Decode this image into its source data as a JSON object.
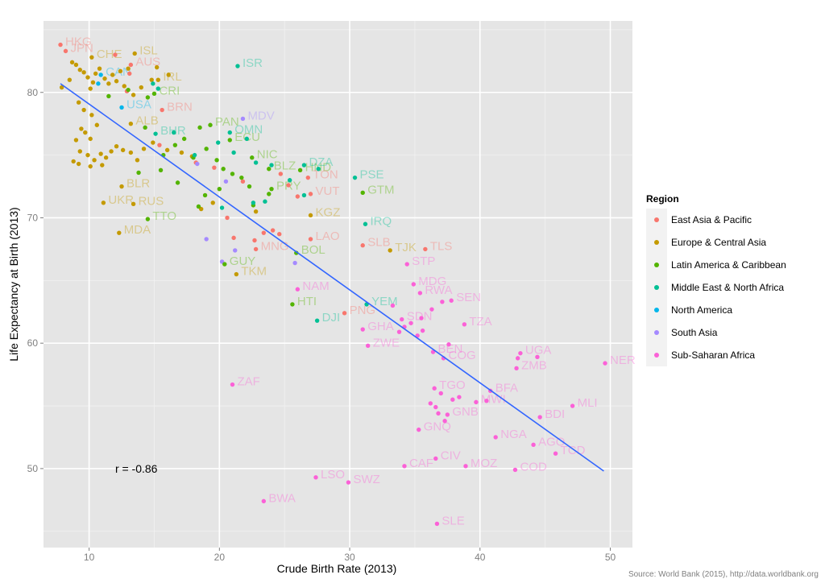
{
  "chart_data": {
    "type": "scatter",
    "xlabel": "Crude Birth Rate (2013)",
    "ylabel": "Life Expectancy at Birth (2013)",
    "xlim": [
      6.5,
      51.7
    ],
    "ylim": [
      43.7,
      85.7
    ],
    "x_ticks": [
      10,
      20,
      30,
      40,
      50
    ],
    "y_ticks": [
      50,
      60,
      70,
      80
    ],
    "grid": true,
    "legend_title": "Region",
    "legend_position": "right",
    "regions": [
      {
        "name": "East Asia & Pacific",
        "color": "#F8766D"
      },
      {
        "name": "Europe & Central Asia",
        "color": "#C49A00"
      },
      {
        "name": "Latin America & Caribbean",
        "color": "#53B400"
      },
      {
        "name": "Middle East & North Africa",
        "color": "#00C094"
      },
      {
        "name": "North America",
        "color": "#00B6EB"
      },
      {
        "name": "South Asia",
        "color": "#A58AFF"
      },
      {
        "name": "Sub-Saharan Africa",
        "color": "#FB61D7"
      }
    ],
    "annotation": "r =  -0.86",
    "trend_line": {
      "x": [
        7.8,
        49.5
      ],
      "y": [
        80.7,
        49.8
      ]
    },
    "labeled_points": [
      {
        "label": "HKG",
        "x": 7.8,
        "y": 83.8,
        "region": 0
      },
      {
        "label": "JPN",
        "x": 8.2,
        "y": 83.3,
        "region": 0
      },
      {
        "label": "CHE",
        "x": 10.2,
        "y": 82.8,
        "region": 1
      },
      {
        "label": "ISL",
        "x": 13.5,
        "y": 83.1,
        "region": 1
      },
      {
        "label": "AUS",
        "x": 13.2,
        "y": 82.2,
        "region": 0
      },
      {
        "label": "IRL",
        "x": 15.3,
        "y": 81.0,
        "region": 1
      },
      {
        "label": "CRI",
        "x": 15.0,
        "y": 79.9,
        "region": 2
      },
      {
        "label": "USA",
        "x": 12.5,
        "y": 78.8,
        "region": 4
      },
      {
        "label": "BRN",
        "x": 15.6,
        "y": 78.6,
        "region": 0
      },
      {
        "label": "MDV",
        "x": 21.8,
        "y": 77.9,
        "region": 5
      },
      {
        "label": "ALB",
        "x": 13.2,
        "y": 77.5,
        "region": 1
      },
      {
        "label": "PAN",
        "x": 19.3,
        "y": 77.4,
        "region": 2
      },
      {
        "label": "BHR",
        "x": 15.1,
        "y": 76.7,
        "region": 3
      },
      {
        "label": "OMN",
        "x": 20.8,
        "y": 76.8,
        "region": 3
      },
      {
        "label": "ECU",
        "x": 20.8,
        "y": 76.2,
        "region": 2
      },
      {
        "label": "NIC",
        "x": 22.5,
        "y": 74.8,
        "region": 2
      },
      {
        "label": "BLZ",
        "x": 23.8,
        "y": 73.9,
        "region": 2
      },
      {
        "label": "HND",
        "x": 26.2,
        "y": 73.8,
        "region": 2
      },
      {
        "label": "DZA",
        "x": 26.5,
        "y": 74.2,
        "region": 3
      },
      {
        "label": "PSE",
        "x": 30.4,
        "y": 73.2,
        "region": 3
      },
      {
        "label": "PRY",
        "x": 24.0,
        "y": 72.3,
        "region": 2
      },
      {
        "label": "TON",
        "x": 26.8,
        "y": 73.2,
        "region": 0
      },
      {
        "label": "VUT",
        "x": 27.0,
        "y": 71.9,
        "region": 0
      },
      {
        "label": "GTM",
        "x": 31.0,
        "y": 72.0,
        "region": 2
      },
      {
        "label": "UKR",
        "x": 11.1,
        "y": 71.2,
        "region": 1
      },
      {
        "label": "RUS",
        "x": 13.4,
        "y": 71.1,
        "region": 1
      },
      {
        "label": "BLR",
        "x": 12.5,
        "y": 72.5,
        "region": 1
      },
      {
        "label": "KGZ",
        "x": 27.0,
        "y": 70.2,
        "region": 1
      },
      {
        "label": "TTO",
        "x": 14.5,
        "y": 69.9,
        "region": 2
      },
      {
        "label": "IRQ",
        "x": 31.2,
        "y": 69.5,
        "region": 3
      },
      {
        "label": "MDA",
        "x": 12.3,
        "y": 68.8,
        "region": 1
      },
      {
        "label": "LAO",
        "x": 27.0,
        "y": 68.3,
        "region": 0
      },
      {
        "label": "SLB",
        "x": 31.0,
        "y": 67.8,
        "region": 0
      },
      {
        "label": "TJK",
        "x": 33.1,
        "y": 67.4,
        "region": 1
      },
      {
        "label": "TLS",
        "x": 35.8,
        "y": 67.5,
        "region": 0
      },
      {
        "label": "BOL",
        "x": 25.9,
        "y": 67.2,
        "region": 2
      },
      {
        "label": "MNG",
        "x": 22.8,
        "y": 67.5,
        "region": 0
      },
      {
        "label": "GUY",
        "x": 20.4,
        "y": 66.3,
        "region": 2
      },
      {
        "label": "TKM",
        "x": 21.3,
        "y": 65.5,
        "region": 1
      },
      {
        "label": "STP",
        "x": 34.4,
        "y": 66.3,
        "region": 6
      },
      {
        "label": "NAM",
        "x": 26.0,
        "y": 64.3,
        "region": 6
      },
      {
        "label": "MDG",
        "x": 34.9,
        "y": 64.7,
        "region": 6
      },
      {
        "label": "RWA",
        "x": 35.4,
        "y": 64.0,
        "region": 6
      },
      {
        "label": "SEN",
        "x": 37.8,
        "y": 63.4,
        "region": 6
      },
      {
        "label": "HTI",
        "x": 25.6,
        "y": 63.1,
        "region": 2
      },
      {
        "label": "YEM",
        "x": 31.3,
        "y": 63.1,
        "region": 3
      },
      {
        "label": "PNG",
        "x": 29.6,
        "y": 62.4,
        "region": 0
      },
      {
        "label": "DJI",
        "x": 27.5,
        "y": 61.8,
        "region": 3
      },
      {
        "label": "TZA",
        "x": 38.8,
        "y": 61.5,
        "region": 6
      },
      {
        "label": "GHA",
        "x": 31.0,
        "y": 61.1,
        "region": 6
      },
      {
        "label": "SDN",
        "x": 34.0,
        "y": 61.9,
        "region": 6
      },
      {
        "label": "ZWE",
        "x": 31.4,
        "y": 59.8,
        "region": 6
      },
      {
        "label": "BEN",
        "x": 36.4,
        "y": 59.3,
        "region": 6
      },
      {
        "label": "COG",
        "x": 37.2,
        "y": 58.8,
        "region": 6
      },
      {
        "label": "UGA",
        "x": 43.1,
        "y": 59.2,
        "region": 6
      },
      {
        "label": "ZMB",
        "x": 42.8,
        "y": 58.0,
        "region": 6
      },
      {
        "label": "NER",
        "x": 49.6,
        "y": 58.4,
        "region": 6
      },
      {
        "label": "ZAF",
        "x": 21.0,
        "y": 56.7,
        "region": 6
      },
      {
        "label": "TGO",
        "x": 36.5,
        "y": 56.4,
        "region": 6
      },
      {
        "label": "BFA",
        "x": 40.8,
        "y": 56.2,
        "region": 6
      },
      {
        "label": "MWI",
        "x": 39.7,
        "y": 55.3,
        "region": 6
      },
      {
        "label": "GNB",
        "x": 37.5,
        "y": 54.3,
        "region": 6
      },
      {
        "label": "MLI",
        "x": 47.1,
        "y": 55.0,
        "region": 6
      },
      {
        "label": "BDI",
        "x": 44.6,
        "y": 54.1,
        "region": 6
      },
      {
        "label": "GNQ",
        "x": 35.3,
        "y": 53.1,
        "region": 6
      },
      {
        "label": "NGA",
        "x": 41.2,
        "y": 52.5,
        "region": 6
      },
      {
        "label": "AGO",
        "x": 44.1,
        "y": 51.9,
        "region": 6
      },
      {
        "label": "TCD",
        "x": 45.8,
        "y": 51.2,
        "region": 6
      },
      {
        "label": "CIV",
        "x": 36.6,
        "y": 50.8,
        "region": 6
      },
      {
        "label": "CAF",
        "x": 34.2,
        "y": 50.2,
        "region": 6
      },
      {
        "label": "MOZ",
        "x": 38.9,
        "y": 50.2,
        "region": 6
      },
      {
        "label": "COD",
        "x": 42.7,
        "y": 49.9,
        "region": 6
      },
      {
        "label": "LSO",
        "x": 27.4,
        "y": 49.3,
        "region": 6
      },
      {
        "label": "SWZ",
        "x": 29.9,
        "y": 48.9,
        "region": 6
      },
      {
        "label": "BWA",
        "x": 23.4,
        "y": 47.4,
        "region": 6
      },
      {
        "label": "SLE",
        "x": 36.7,
        "y": 45.6,
        "region": 6
      },
      {
        "label": "ISR",
        "x": 21.4,
        "y": 82.1,
        "region": 3
      },
      {
        "label": "CAN",
        "x": 10.9,
        "y": 81.4,
        "region": 4
      }
    ],
    "unlabeled_points": [
      [
        7.9,
        80.4,
        1
      ],
      [
        8.5,
        81.0,
        1
      ],
      [
        8.7,
        82.4,
        1
      ],
      [
        9.0,
        82.2,
        1
      ],
      [
        9.3,
        81.8,
        1
      ],
      [
        9.6,
        81.6,
        1
      ],
      [
        9.9,
        81.2,
        1
      ],
      [
        10.1,
        80.3,
        1
      ],
      [
        10.3,
        80.8,
        1
      ],
      [
        10.5,
        81.5,
        1
      ],
      [
        10.8,
        81.9,
        1
      ],
      [
        11.2,
        81.1,
        1
      ],
      [
        11.5,
        80.7,
        1
      ],
      [
        11.8,
        81.4,
        1
      ],
      [
        12.1,
        80.9,
        1
      ],
      [
        12.4,
        81.7,
        1
      ],
      [
        12.7,
        80.5,
        1
      ],
      [
        13.0,
        81.9,
        1
      ],
      [
        9.2,
        79.2,
        1
      ],
      [
        9.6,
        78.6,
        1
      ],
      [
        10.2,
        78.2,
        1
      ],
      [
        10.6,
        77.4,
        1
      ],
      [
        9.4,
        77.1,
        1
      ],
      [
        9.7,
        76.8,
        1
      ],
      [
        10.1,
        76.3,
        1
      ],
      [
        9.0,
        76.2,
        1
      ],
      [
        9.3,
        75.3,
        1
      ],
      [
        9.9,
        75.0,
        1
      ],
      [
        10.4,
        74.6,
        1
      ],
      [
        10.9,
        75.1,
        1
      ],
      [
        11.3,
        74.8,
        1
      ],
      [
        11.7,
        75.3,
        1
      ],
      [
        12.1,
        75.7,
        1
      ],
      [
        12.6,
        75.4,
        1
      ],
      [
        13.2,
        75.2,
        1
      ],
      [
        13.7,
        74.6,
        1
      ],
      [
        14.2,
        75.5,
        1
      ],
      [
        8.8,
        74.5,
        1
      ],
      [
        9.2,
        74.3,
        1
      ],
      [
        10.1,
        74.1,
        1
      ],
      [
        11.0,
        74.2,
        1
      ],
      [
        14.9,
        76.0,
        1
      ],
      [
        16.0,
        75.4,
        1
      ],
      [
        17.1,
        75.2,
        1
      ],
      [
        17.9,
        74.9,
        1
      ],
      [
        18.6,
        70.7,
        1
      ],
      [
        19.5,
        71.2,
        1
      ],
      [
        22.8,
        70.5,
        1
      ],
      [
        13.4,
        79.8,
        1
      ],
      [
        14.0,
        80.4,
        1
      ],
      [
        14.8,
        81.0,
        1
      ],
      [
        15.2,
        82.0,
        1
      ],
      [
        16.1,
        81.4,
        1
      ],
      [
        12.0,
        83.0,
        0
      ],
      [
        13.1,
        81.5,
        0
      ],
      [
        12.9,
        80.1,
        0
      ],
      [
        15.4,
        75.8,
        0
      ],
      [
        18.2,
        74.4,
        0
      ],
      [
        19.6,
        74.0,
        0
      ],
      [
        20.6,
        70.0,
        0
      ],
      [
        21.1,
        68.4,
        0
      ],
      [
        22.7,
        68.2,
        0
      ],
      [
        23.4,
        68.8,
        0
      ],
      [
        24.1,
        69.0,
        0
      ],
      [
        24.6,
        68.7,
        0
      ],
      [
        25.3,
        72.6,
        0
      ],
      [
        26.0,
        71.7,
        0
      ],
      [
        24.7,
        73.5,
        0
      ],
      [
        21.8,
        72.9,
        0
      ],
      [
        11.5,
        79.7,
        2
      ],
      [
        13.0,
        80.2,
        2
      ],
      [
        14.3,
        77.2,
        2
      ],
      [
        14.5,
        79.6,
        2
      ],
      [
        15.7,
        75.0,
        2
      ],
      [
        16.6,
        75.8,
        2
      ],
      [
        17.3,
        76.3,
        2
      ],
      [
        18.0,
        74.8,
        2
      ],
      [
        18.5,
        77.2,
        2
      ],
      [
        19.0,
        75.5,
        2
      ],
      [
        19.8,
        74.6,
        2
      ],
      [
        20.3,
        73.9,
        2
      ],
      [
        21.0,
        73.5,
        2
      ],
      [
        21.7,
        73.2,
        2
      ],
      [
        22.3,
        72.5,
        2
      ],
      [
        20.0,
        72.3,
        2
      ],
      [
        18.9,
        71.8,
        2
      ],
      [
        16.8,
        72.8,
        2
      ],
      [
        15.5,
        73.8,
        2
      ],
      [
        22.6,
        71.0,
        2
      ],
      [
        23.8,
        71.9,
        2
      ],
      [
        18.4,
        70.9,
        2
      ],
      [
        13.8,
        73.6,
        2
      ],
      [
        14.9,
        80.7,
        3
      ],
      [
        15.3,
        80.3,
        3
      ],
      [
        16.5,
        76.8,
        3
      ],
      [
        18.1,
        75.0,
        3
      ],
      [
        19.9,
        76.0,
        3
      ],
      [
        21.1,
        75.2,
        3
      ],
      [
        22.1,
        76.3,
        3
      ],
      [
        22.8,
        74.4,
        3
      ],
      [
        24.0,
        74.2,
        3
      ],
      [
        25.4,
        73.0,
        3
      ],
      [
        23.5,
        71.3,
        3
      ],
      [
        26.5,
        71.8,
        3
      ],
      [
        27.6,
        73.9,
        3
      ],
      [
        22.6,
        71.2,
        3
      ],
      [
        20.2,
        70.8,
        3
      ],
      [
        10.7,
        80.7,
        4
      ],
      [
        19.0,
        68.3,
        5
      ],
      [
        20.2,
        66.5,
        5
      ],
      [
        21.2,
        67.4,
        5
      ],
      [
        18.3,
        74.3,
        5
      ],
      [
        25.8,
        66.4,
        5
      ],
      [
        20.5,
        72.9,
        5
      ],
      [
        33.3,
        63.0,
        6
      ],
      [
        34.2,
        61.3,
        6
      ],
      [
        35.6,
        61.0,
        6
      ],
      [
        35.2,
        60.6,
        6
      ],
      [
        33.8,
        60.9,
        6
      ],
      [
        36.3,
        62.7,
        6
      ],
      [
        37.1,
        63.3,
        6
      ],
      [
        35.5,
        62.0,
        6
      ],
      [
        34.7,
        61.6,
        6
      ],
      [
        37.6,
        59.9,
        6
      ],
      [
        38.4,
        55.7,
        6
      ],
      [
        37.0,
        56.0,
        6
      ],
      [
        36.6,
        54.9,
        6
      ],
      [
        37.9,
        55.5,
        6
      ],
      [
        37.3,
        53.8,
        6
      ],
      [
        36.2,
        55.2,
        6
      ],
      [
        42.9,
        58.8,
        6
      ],
      [
        44.4,
        58.9,
        6
      ],
      [
        40.5,
        55.4,
        6
      ],
      [
        36.8,
        54.4,
        6
      ]
    ],
    "source": "Source: World Bank (2015), http://data.worldbank.org"
  }
}
